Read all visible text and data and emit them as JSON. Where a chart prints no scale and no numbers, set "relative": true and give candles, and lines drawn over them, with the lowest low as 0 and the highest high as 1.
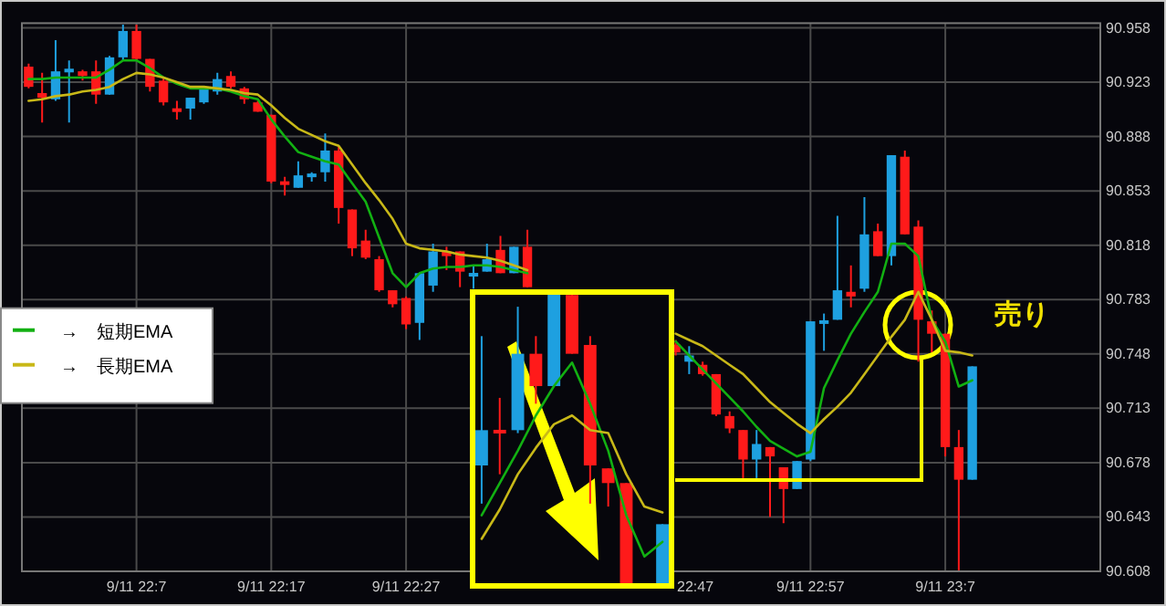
{
  "chart_data": [
    {
      "type": "candlestick",
      "categories": [
        null,
        null,
        null,
        null,
        null,
        null,
        null,
        null,
        "9/11 22:7",
        null,
        null,
        null,
        null,
        null,
        null,
        null,
        null,
        null,
        "9/11 22:17",
        null,
        null,
        null,
        null,
        null,
        null,
        null,
        null,
        null,
        "9/11 22:27",
        null,
        null,
        null,
        null,
        null,
        null,
        null,
        null,
        null,
        null,
        null,
        null,
        null,
        null,
        null,
        null,
        null,
        null,
        null,
        null,
        null,
        null,
        null,
        null,
        null,
        null,
        null,
        null,
        null,
        "9/11 22:57",
        null,
        null,
        null,
        null,
        null,
        null,
        null,
        null,
        null,
        "9/11 23:7",
        null,
        null,
        null,
        null,
        null,
        null,
        null,
        null,
        null,
        null,
        null
      ],
      "ohlc": [
        [
          90.933,
          90.935,
          90.919,
          90.92
        ],
        [
          90.916,
          90.929,
          90.897,
          90.913
        ],
        [
          90.912,
          90.95,
          90.911,
          90.93
        ],
        [
          90.93,
          90.937,
          90.897,
          90.931
        ],
        [
          90.93,
          90.931,
          90.924,
          90.927
        ],
        [
          90.93,
          90.937,
          90.909,
          90.915
        ],
        [
          90.915,
          90.94,
          90.915,
          90.939
        ],
        [
          90.939,
          90.96,
          90.937,
          90.956
        ],
        [
          90.956,
          90.96,
          90.937,
          90.938
        ],
        [
          90.938,
          90.938,
          90.917,
          90.92
        ],
        [
          90.924,
          90.926,
          90.908,
          90.91
        ],
        [
          90.906,
          90.911,
          90.899,
          90.904
        ],
        [
          90.906,
          90.913,
          90.899,
          90.913
        ],
        [
          90.91,
          90.92,
          90.909,
          90.919
        ],
        [
          90.917,
          90.929,
          90.915,
          90.925
        ],
        [
          90.927,
          90.93,
          90.919,
          90.92
        ],
        [
          90.919,
          90.92,
          90.909,
          90.912
        ],
        [
          90.91,
          90.911,
          90.904,
          90.904
        ],
        [
          90.902,
          90.902,
          90.858,
          90.859
        ],
        [
          90.859,
          90.862,
          90.85,
          90.857
        ],
        [
          90.855,
          90.872,
          90.855,
          90.863
        ],
        [
          90.862,
          90.865,
          90.859,
          90.864
        ],
        [
          90.865,
          90.89,
          90.859,
          90.879
        ],
        [
          90.879,
          90.882,
          90.832,
          90.842
        ],
        [
          90.841,
          90.841,
          90.811,
          90.816
        ],
        [
          90.821,
          90.828,
          90.809,
          90.81
        ],
        [
          90.809,
          90.811,
          90.788,
          90.789
        ],
        [
          90.789,
          90.789,
          90.778,
          90.78
        ],
        [
          90.784,
          90.785,
          90.764,
          90.767
        ],
        [
          90.768,
          90.8,
          90.757,
          90.8
        ],
        [
          90.792,
          90.819,
          90.788,
          90.814
        ],
        [
          90.814,
          90.817,
          90.802,
          90.811
        ],
        [
          90.814,
          90.814,
          90.791,
          90.801
        ],
        [
          90.798,
          90.805,
          90.79,
          90.8
        ],
        [
          90.801,
          90.819,
          90.801,
          90.809
        ],
        [
          90.815,
          90.824,
          90.8,
          90.8
        ],
        [
          90.8,
          90.817,
          90.8,
          90.817
        ],
        [
          90.817,
          90.828,
          90.791,
          90.791
        ],
        null,
        null,
        null,
        null,
        null,
        null,
        null,
        null,
        null,
        null,
        [
          90.754,
          90.757,
          90.747,
          90.749
        ],
        [
          90.743,
          90.753,
          90.735,
          90.747
        ],
        [
          90.741,
          90.743,
          90.734,
          90.735
        ],
        [
          90.735,
          90.735,
          90.708,
          90.709
        ],
        [
          90.708,
          90.711,
          90.697,
          90.7
        ],
        [
          90.699,
          90.699,
          90.668,
          90.68
        ],
        [
          90.68,
          90.699,
          90.668,
          90.69
        ],
        [
          90.688,
          90.688,
          90.643,
          90.682
        ],
        [
          90.675,
          90.675,
          90.639,
          90.661
        ],
        [
          90.661,
          90.679,
          90.661,
          90.679
        ],
        [
          90.68,
          90.769,
          90.679,
          90.769
        ],
        [
          90.768,
          90.774,
          90.75,
          90.769
        ],
        [
          90.77,
          90.837,
          90.77,
          90.789
        ],
        [
          90.788,
          90.805,
          90.778,
          90.785
        ],
        [
          90.79,
          90.849,
          90.788,
          90.825
        ],
        [
          90.827,
          90.832,
          90.811,
          90.811
        ],
        [
          90.811,
          90.876,
          90.805,
          90.876
        ],
        [
          90.875,
          90.879,
          90.825,
          90.825
        ],
        [
          90.83,
          90.834,
          90.743,
          90.77
        ],
        [
          90.769,
          90.776,
          90.749,
          90.761
        ],
        [
          90.761,
          90.761,
          90.682,
          90.688
        ],
        [
          90.688,
          90.699,
          90.608,
          90.667
        ],
        [
          90.667,
          90.74,
          90.667,
          90.74
        ],
        null,
        null,
        null,
        null,
        null,
        null,
        null,
        null,
        null
      ],
      "colors": [
        "#ff1a1a",
        "#ff1a1a",
        "#1ea0e0",
        "#1ea0e0",
        "#ff1a1a",
        "#ff1a1a",
        "#1ea0e0",
        "#1ea0e0",
        "#ff1a1a",
        "#ff1a1a",
        "#ff1a1a",
        "#ff1a1a",
        "#1ea0e0",
        "#1ea0e0",
        "#1ea0e0",
        "#ff1a1a",
        "#ff1a1a",
        "#ff1a1a",
        "#ff1a1a",
        "#ff1a1a",
        "#1ea0e0",
        "#1ea0e0",
        "#1ea0e0",
        "#ff1a1a",
        "#ff1a1a",
        "#ff1a1a",
        "#ff1a1a",
        "#ff1a1a",
        "#ff1a1a",
        "#1ea0e0",
        "#1ea0e0",
        "#ff1a1a",
        "#ff1a1a",
        "#1ea0e0",
        "#1ea0e0",
        "#ff1a1a",
        "#1ea0e0",
        "#ff1a1a",
        null,
        null,
        null,
        null,
        null,
        null,
        null,
        null,
        null,
        null,
        "#ff1a1a",
        "#1ea0e0",
        "#ff1a1a",
        "#ff1a1a",
        "#ff1a1a",
        "#ff1a1a",
        "#1ea0e0",
        "#ff1a1a",
        "#ff1a1a",
        "#1ea0e0",
        "#1ea0e0",
        "#1ea0e0",
        "#1ea0e0",
        "#ff1a1a",
        "#1ea0e0",
        "#ff1a1a",
        "#1ea0e0",
        "#ff1a1a",
        "#ff1a1a",
        "#ff1a1a",
        "#ff1a1a",
        "#ff1a1a",
        "#1ea0e0",
        null,
        null,
        null,
        null,
        null,
        null,
        null,
        null,
        null
      ],
      "series": [
        {
          "type": "line",
          "name": "→　短期EMA",
          "color": "#12b012",
          "values": [
            90.925,
            90.925,
            90.926,
            90.926,
            90.926,
            90.926,
            90.931,
            90.937,
            90.937,
            90.932,
            90.926,
            90.922,
            90.919,
            90.919,
            90.919,
            90.917,
            90.914,
            90.912,
            90.899,
            90.888,
            90.878,
            90.875,
            90.872,
            90.87,
            90.858,
            90.846,
            90.823,
            90.8,
            90.791,
            90.8,
            90.803,
            90.804,
            90.804,
            90.805,
            90.805,
            90.804,
            90.802,
            90.8,
            null,
            null,
            null,
            null,
            null,
            null,
            null,
            null,
            null,
            null,
            90.756,
            90.747,
            90.738,
            90.729,
            90.72,
            90.711,
            90.701,
            90.692,
            90.687,
            90.682,
            90.685,
            90.726,
            90.744,
            90.761,
            90.775,
            90.788,
            90.819,
            90.819,
            90.811,
            90.77,
            90.756,
            90.727,
            90.731,
            null,
            null,
            null,
            null,
            null,
            null,
            null,
            null,
            null
          ]
        },
        {
          "type": "line",
          "name": "→　長期EMA",
          "color": "#c8b818",
          "values": [
            90.911,
            90.912,
            90.914,
            90.915,
            90.917,
            90.918,
            90.92,
            90.925,
            90.929,
            90.928,
            90.926,
            90.923,
            90.92,
            90.92,
            90.919,
            90.918,
            90.916,
            90.915,
            90.908,
            90.9,
            90.893,
            90.889,
            90.885,
            90.882,
            90.87,
            90.858,
            90.847,
            90.835,
            90.819,
            90.816,
            90.815,
            90.814,
            90.812,
            90.811,
            90.81,
            90.808,
            90.805,
            90.802,
            null,
            null,
            null,
            null,
            null,
            null,
            null,
            null,
            null,
            null,
            90.761,
            90.757,
            90.753,
            90.747,
            90.741,
            90.735,
            90.726,
            90.717,
            90.71,
            90.703,
            90.697,
            90.706,
            90.714,
            90.723,
            90.735,
            90.747,
            90.759,
            90.77,
            90.788,
            90.77,
            90.75,
            90.749,
            90.747,
            null,
            null,
            null,
            null,
            null,
            null,
            null,
            null,
            null
          ]
        }
      ],
      "ylim": [
        90.608,
        90.961
      ],
      "yticks": [
        90.608,
        90.643,
        90.678,
        90.713,
        90.748,
        90.783,
        90.818,
        90.853,
        90.888,
        90.923,
        90.958
      ],
      "grid": true,
      "legend": "left",
      "annotations": [
        "売り",
        "22:47"
      ]
    },
    {
      "type": "candlestick",
      "relative": true,
      "categories": [
        null,
        null,
        null,
        null,
        null,
        null,
        null,
        null,
        null,
        null,
        null
      ],
      "ohlc": [
        [
          0.41,
          0.85,
          0.28,
          0.53
        ],
        [
          0.53,
          0.64,
          0.38,
          0.52
        ],
        [
          0.53,
          0.95,
          0.52,
          0.79
        ],
        [
          0.79,
          0.85,
          0.62,
          0.68
        ],
        [
          0.68,
          1,
          0.68,
          1
        ],
        [
          0.99,
          1,
          0.79,
          0.79
        ],
        [
          0.82,
          0.85,
          0.28,
          0.41
        ],
        [
          0.4,
          0.4,
          0.27,
          0.35
        ],
        [
          0.35,
          0.35,
          0,
          0
        ],
        null,
        [
          0,
          0.21,
          0,
          0.21
        ]
      ],
      "colors": [
        "#1ea0e0",
        "#ff1a1a",
        "#1ea0e0",
        "#ff1a1a",
        "#1ea0e0",
        "#ff1a1a",
        "#ff1a1a",
        "#ff1a1a",
        "#ff1a1a",
        null,
        "#1ea0e0"
      ],
      "series": [
        {
          "type": "line",
          "color": "#12b012",
          "values": [
            0.24,
            0.35,
            0.46,
            0.58,
            0.68,
            0.76,
            0.62,
            0.46,
            0.24,
            0.1,
            0.15
          ]
        },
        {
          "type": "line",
          "color": "#c8b818",
          "values": [
            0.16,
            0.26,
            0.38,
            0.47,
            0.55,
            0.58,
            0.53,
            0.52,
            0.38,
            0.27,
            0.25
          ]
        }
      ]
    }
  ]
}
